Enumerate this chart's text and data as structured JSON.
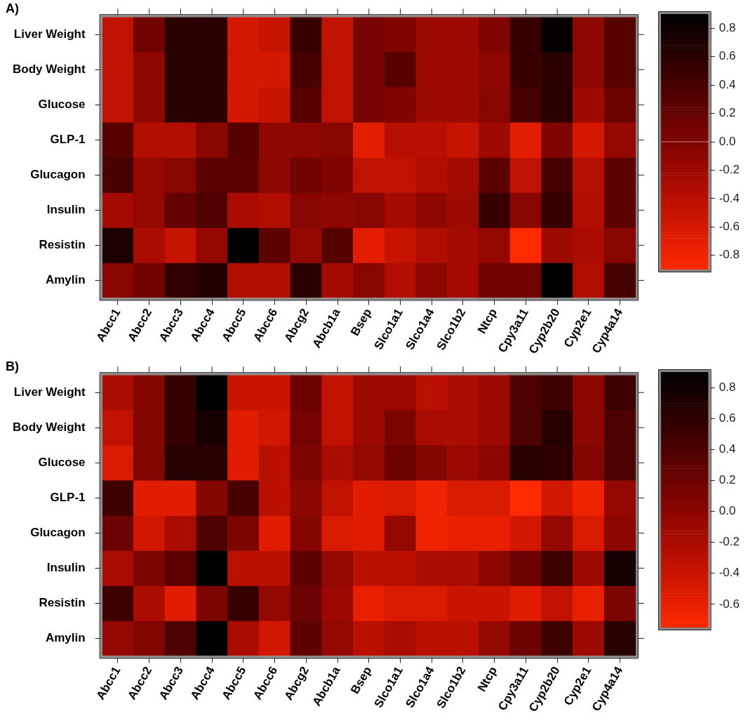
{
  "chart_data": [
    {
      "type": "heatmap",
      "title": "A)",
      "categories": [
        "Abcc1",
        "Abcc2",
        "Abcc3",
        "Abcc4",
        "Abcc5",
        "Abcc6",
        "Abcg2",
        "Abcb1a",
        "Bsep",
        "Slco1a1",
        "Slco1a4",
        "Slco1b2",
        "Ntcp",
        "Cpy3a11",
        "Cyp2b20",
        "Cyp2e1",
        "Cyp4a14"
      ],
      "y_categories": [
        "Liver Weight",
        "Body Weight",
        "Glucose",
        "GLP-1",
        "Glucagon",
        "Insulin",
        "Resistin",
        "Amylin"
      ],
      "cells": [
        [
          -0.45,
          0.1,
          0.6,
          0.6,
          -0.6,
          -0.5,
          0.5,
          -0.45,
          0.05,
          0,
          -0.2,
          -0.2,
          0,
          0.5,
          0.85,
          -0.1,
          0.3
        ],
        [
          -0.45,
          -0.1,
          0.6,
          0.6,
          -0.6,
          -0.6,
          0.4,
          -0.45,
          0.05,
          0.3,
          -0.2,
          -0.2,
          -0.1,
          0.5,
          0.6,
          -0.1,
          0.3
        ],
        [
          -0.45,
          -0.1,
          0.6,
          0.6,
          -0.6,
          -0.5,
          0.3,
          -0.45,
          0.05,
          0,
          -0.2,
          -0.2,
          -0.05,
          0.4,
          0.6,
          -0.2,
          0.15
        ],
        [
          0.3,
          -0.35,
          -0.35,
          -0.05,
          0.3,
          -0.1,
          -0.1,
          -0.05,
          -0.7,
          -0.4,
          -0.4,
          -0.5,
          -0.2,
          -0.7,
          0,
          -0.6,
          -0.15
        ],
        [
          0.4,
          -0.15,
          -0.05,
          0.25,
          0.25,
          -0.1,
          0.1,
          0,
          -0.45,
          -0.45,
          -0.35,
          -0.25,
          0.25,
          -0.45,
          0.4,
          -0.4,
          0.25
        ],
        [
          -0.25,
          -0.15,
          0.2,
          0.35,
          -0.3,
          -0.35,
          -0.05,
          -0.1,
          -0.05,
          -0.25,
          -0.1,
          -0.2,
          0.5,
          -0.05,
          0.5,
          -0.35,
          0.25
        ],
        [
          0.7,
          -0.3,
          -0.5,
          -0.15,
          0.9,
          0.25,
          -0.15,
          0.3,
          -0.7,
          -0.5,
          -0.35,
          -0.25,
          -0.15,
          -0.9,
          -0.2,
          -0.3,
          -0.05
        ],
        [
          -0.05,
          0.1,
          0.55,
          0.65,
          -0.35,
          -0.35,
          0.6,
          -0.25,
          -0.05,
          -0.35,
          -0.1,
          -0.25,
          0.1,
          0.1,
          0.9,
          -0.35,
          0.4
        ]
      ],
      "clim": [
        -0.9,
        0.9
      ],
      "cticks": [
        -0.8,
        -0.6,
        -0.4,
        -0.2,
        {
          "value": 0,
          "label": "0.0"
        },
        0.2,
        0.4,
        0.6,
        0.8
      ]
    },
    {
      "type": "heatmap",
      "title": "B)",
      "categories": [
        "Abcc1",
        "Abcc2",
        "Abcc3",
        "Abcc4",
        "Abcc5",
        "Abcc6",
        "Abcg2",
        "Abcb1a",
        "Bsep",
        "Slco1a1",
        "Slco1a4",
        "Slco1b2",
        "Ntcp",
        "Cpy3a11",
        "Cyp2b20",
        "Cyp2e1",
        "Cyp4a14"
      ],
      "y_categories": [
        "Liver Weight",
        "Body Weight",
        "Glucose",
        "GLP-1",
        "Glucagon",
        "Insulin",
        "Resistin",
        "Amylin"
      ],
      "cells": [
        [
          -0.2,
          0.05,
          0.55,
          0.9,
          -0.4,
          -0.4,
          0.2,
          -0.35,
          -0.1,
          -0.1,
          -0.3,
          -0.2,
          -0.1,
          0.4,
          0.5,
          0,
          0.5
        ],
        [
          -0.35,
          0.05,
          0.55,
          0.75,
          -0.55,
          -0.45,
          0.15,
          -0.35,
          -0.1,
          0.1,
          -0.2,
          -0.2,
          -0.1,
          0.4,
          0.65,
          0,
          0.4
        ],
        [
          -0.5,
          0.05,
          0.65,
          0.65,
          -0.55,
          -0.3,
          0.1,
          -0.2,
          -0.05,
          0.2,
          0.05,
          -0.1,
          0,
          0.65,
          0.6,
          0.05,
          0.4
        ],
        [
          0.5,
          -0.55,
          -0.55,
          0.05,
          0.45,
          -0.3,
          0,
          -0.35,
          -0.55,
          -0.5,
          -0.65,
          -0.5,
          -0.5,
          -0.75,
          -0.45,
          -0.65,
          -0.05
        ],
        [
          0.2,
          -0.45,
          -0.2,
          0.4,
          0.1,
          -0.55,
          0.05,
          -0.5,
          -0.55,
          -0.05,
          -0.65,
          -0.6,
          -0.6,
          -0.45,
          -0.05,
          -0.5,
          0
        ],
        [
          -0.2,
          0.1,
          0.3,
          0.9,
          -0.3,
          -0.3,
          0.3,
          -0.05,
          -0.3,
          -0.3,
          -0.2,
          -0.2,
          0,
          0.2,
          0.5,
          -0.1,
          0.75
        ],
        [
          0.5,
          -0.2,
          -0.55,
          0.1,
          0.55,
          -0.05,
          0.2,
          -0.1,
          -0.6,
          -0.5,
          -0.5,
          -0.4,
          -0.4,
          -0.55,
          -0.35,
          -0.6,
          0.1
        ],
        [
          -0.05,
          0.05,
          0.4,
          0.9,
          -0.2,
          -0.45,
          0.3,
          -0.05,
          -0.3,
          -0.2,
          -0.3,
          -0.3,
          -0.05,
          0.2,
          0.5,
          -0.1,
          0.65
        ]
      ],
      "clim": [
        -0.75,
        0.9
      ],
      "cticks": [
        -0.6,
        -0.4,
        -0.2,
        {
          "value": 0,
          "label": "0.0"
        },
        0.2,
        0.4,
        0.6,
        0.8
      ]
    }
  ]
}
